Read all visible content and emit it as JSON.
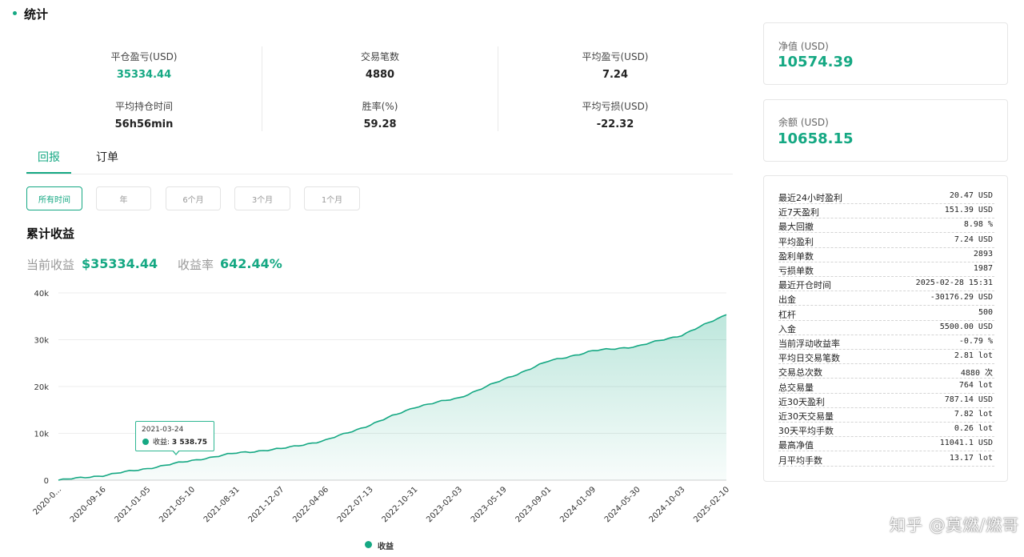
{
  "header": {
    "title": "统计"
  },
  "stats": [
    {
      "label": "平仓盈亏(USD)",
      "value": "35334.44",
      "green": true
    },
    {
      "label": "交易笔数",
      "value": "4880"
    },
    {
      "label": "平均盈亏(USD)",
      "value": "7.24"
    },
    {
      "label": "平均持仓时间",
      "value": "56h56min"
    },
    {
      "label": "胜率(%)",
      "value": "59.28"
    },
    {
      "label": "平均亏损(USD)",
      "value": "-22.32"
    }
  ],
  "tabs": [
    {
      "label": "回报",
      "active": true
    },
    {
      "label": "订单"
    }
  ],
  "periods": [
    {
      "label": "所有时间",
      "active": true
    },
    {
      "label": "年"
    },
    {
      "label": "6个月"
    },
    {
      "label": "3个月"
    },
    {
      "label": "1个月"
    }
  ],
  "section": {
    "title": "累计收益",
    "current_label": "当前收益",
    "current_value": "$35334.44",
    "rate_label": "收益率",
    "rate_value": "642.44%"
  },
  "tooltip": {
    "date": "2021-03-24",
    "label": "收益:",
    "value": "3 538.75"
  },
  "chart_data": {
    "type": "area",
    "series": [
      {
        "name": "收益"
      }
    ],
    "y_ticks": [
      "0",
      "10k",
      "20k",
      "30k",
      "40k"
    ],
    "ylim": [
      0,
      40000
    ],
    "x_tick_labels": [
      "2020-0...",
      "2020-09-16",
      "2021-01-05",
      "2021-05-10",
      "2021-08-31",
      "2021-12-07",
      "2022-04-06",
      "2022-07-13",
      "2022-10-31",
      "2023-02-03",
      "2023-05-19",
      "2023-09-01",
      "2024-01-09",
      "2024-05-30",
      "2024-10-03",
      "2025-02-10"
    ],
    "x": [
      "2020-0...",
      "2020-09-16",
      "2021-01-05",
      "2021-05-10",
      "2021-08-31",
      "2021-12-07",
      "2022-04-06",
      "2022-07-13",
      "2022-10-31",
      "2023-02-03",
      "2023-05-19",
      "2023-09-01",
      "2024-01-09",
      "2024-05-30",
      "2024-10-03",
      "2025-02-10"
    ],
    "values": [
      0,
      1000,
      2500,
      4200,
      5800,
      6700,
      8500,
      11800,
      15600,
      17600,
      21500,
      25400,
      27600,
      28600,
      31000,
      35334
    ],
    "grid": true,
    "legend_position": "bottom-center",
    "color": "#15a883"
  },
  "cards": [
    {
      "label": "净值 (USD)",
      "value": "10574.39"
    },
    {
      "label": "余额 (USD)",
      "value": "10658.15"
    }
  ],
  "metrics": [
    {
      "label": "最近24小时盈利",
      "value": "20.47 USD"
    },
    {
      "label": "近7天盈利",
      "value": "151.39 USD"
    },
    {
      "label": "最大回撤",
      "value": "8.98 %"
    },
    {
      "label": "平均盈利",
      "value": "7.24 USD"
    },
    {
      "label": "盈利单数",
      "value": "2893"
    },
    {
      "label": "亏损单数",
      "value": "1987"
    },
    {
      "label": "最近开仓时间",
      "value": "2025-02-28 15:31"
    },
    {
      "label": "出金",
      "value": "-30176.29 USD"
    },
    {
      "label": "杠杆",
      "value": "500"
    },
    {
      "label": "入金",
      "value": "5500.00 USD"
    },
    {
      "label": "当前浮动收益率",
      "value": "-0.79 %"
    },
    {
      "label": "平均日交易笔数",
      "value": "2.81 lot"
    },
    {
      "label": "交易总次数",
      "value": "4880 次"
    },
    {
      "label": "总交易量",
      "value": "764 lot"
    },
    {
      "label": "近30天盈利",
      "value": "787.14 USD"
    },
    {
      "label": "近30天交易量",
      "value": "7.82 lot"
    },
    {
      "label": "30天平均手数",
      "value": "0.26 lot"
    },
    {
      "label": "最高净值",
      "value": "11041.1 USD"
    },
    {
      "label": "月平均手数",
      "value": "13.17 lot"
    }
  ],
  "watermark": "知乎 @莫燃/燃哥"
}
